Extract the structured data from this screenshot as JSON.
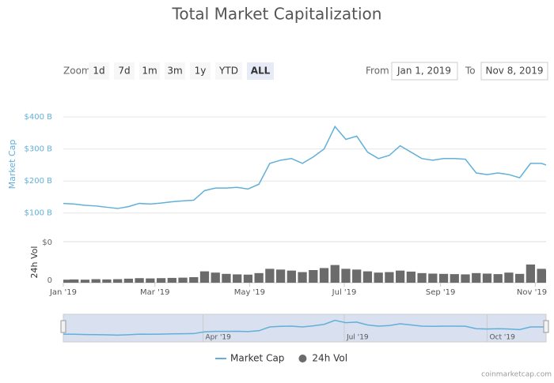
{
  "controls": {
    "zoom_label": "Zoom",
    "zoom_buttons": [
      "1d",
      "7d",
      "1m",
      "3m",
      "1y",
      "YTD",
      "ALL"
    ],
    "active_button": "ALL",
    "from_label": "From",
    "from_value": "Jan 1, 2019",
    "to_label": "To",
    "to_value": "Nov 8, 2019"
  },
  "chart_data": {
    "type": "line",
    "title": "Total Market Capitalization",
    "ylabel": "Market Cap",
    "y2label": "24h Vol",
    "y2_top_label": "$0",
    "x": [
      "2019-01-01",
      "2019-01-08",
      "2019-01-15",
      "2019-01-22",
      "2019-01-29",
      "2019-02-05",
      "2019-02-12",
      "2019-02-19",
      "2019-02-26",
      "2019-03-05",
      "2019-03-12",
      "2019-03-19",
      "2019-03-26",
      "2019-04-02",
      "2019-04-09",
      "2019-04-16",
      "2019-04-23",
      "2019-04-30",
      "2019-05-07",
      "2019-05-14",
      "2019-05-21",
      "2019-05-28",
      "2019-06-04",
      "2019-06-11",
      "2019-06-18",
      "2019-06-25",
      "2019-07-02",
      "2019-07-09",
      "2019-07-16",
      "2019-07-23",
      "2019-07-30",
      "2019-08-06",
      "2019-08-13",
      "2019-08-20",
      "2019-08-27",
      "2019-09-03",
      "2019-09-10",
      "2019-09-17",
      "2019-09-24",
      "2019-10-01",
      "2019-10-08",
      "2019-10-15",
      "2019-10-22",
      "2019-10-29",
      "2019-11-05",
      "2019-11-08"
    ],
    "series": [
      {
        "name": "Market Cap",
        "type": "line",
        "color": "#62b0d9",
        "values": [
          130,
          128,
          124,
          122,
          118,
          114,
          120,
          130,
          128,
          131,
          135,
          138,
          140,
          170,
          178,
          178,
          180,
          175,
          190,
          255,
          265,
          270,
          255,
          275,
          300,
          370,
          330,
          340,
          290,
          270,
          280,
          310,
          290,
          270,
          265,
          270,
          270,
          268,
          225,
          220,
          225,
          220,
          210,
          255,
          255,
          250
        ]
      },
      {
        "name": "24h Vol",
        "type": "bar",
        "axis": "y2",
        "color": "#6b6b6b",
        "values": [
          12,
          13,
          12,
          14,
          13,
          14,
          16,
          18,
          17,
          18,
          19,
          20,
          22,
          45,
          40,
          35,
          33,
          32,
          38,
          55,
          52,
          48,
          42,
          50,
          58,
          70,
          55,
          52,
          45,
          40,
          42,
          48,
          44,
          38,
          36,
          35,
          34,
          33,
          38,
          36,
          34,
          40,
          35,
          72,
          55,
          50
        ]
      }
    ],
    "xlim": [
      "2019-01-01",
      "2019-11-08"
    ],
    "xticks": [
      {
        "value": "2019-01-01",
        "label": "Jan '19"
      },
      {
        "value": "2019-03-01",
        "label": "Mar '19"
      },
      {
        "value": "2019-05-01",
        "label": "May '19"
      },
      {
        "value": "2019-07-01",
        "label": "Jul '19"
      },
      {
        "value": "2019-09-01",
        "label": "Sep '19"
      },
      {
        "value": "2019-11-01",
        "label": "Nov '19"
      }
    ],
    "ylim": [
      50,
      420
    ],
    "yticks": [
      {
        "value": 100,
        "label": "$100 B"
      },
      {
        "value": 200,
        "label": "$200 B"
      },
      {
        "value": 300,
        "label": "$300 B"
      },
      {
        "value": 400,
        "label": "$400 B"
      }
    ],
    "y2lim": [
      0,
      150
    ],
    "y2ticks": [
      {
        "value": 0,
        "label": "0"
      }
    ],
    "navigator_xticks": [
      {
        "value": "2019-04-01",
        "label": "Apr '19"
      },
      {
        "value": "2019-07-01",
        "label": "Jul '19"
      },
      {
        "value": "2019-10-01",
        "label": "Oct '19"
      }
    ],
    "grid": true,
    "legend": "bottom",
    "credit": "coinmarketcap.com"
  }
}
